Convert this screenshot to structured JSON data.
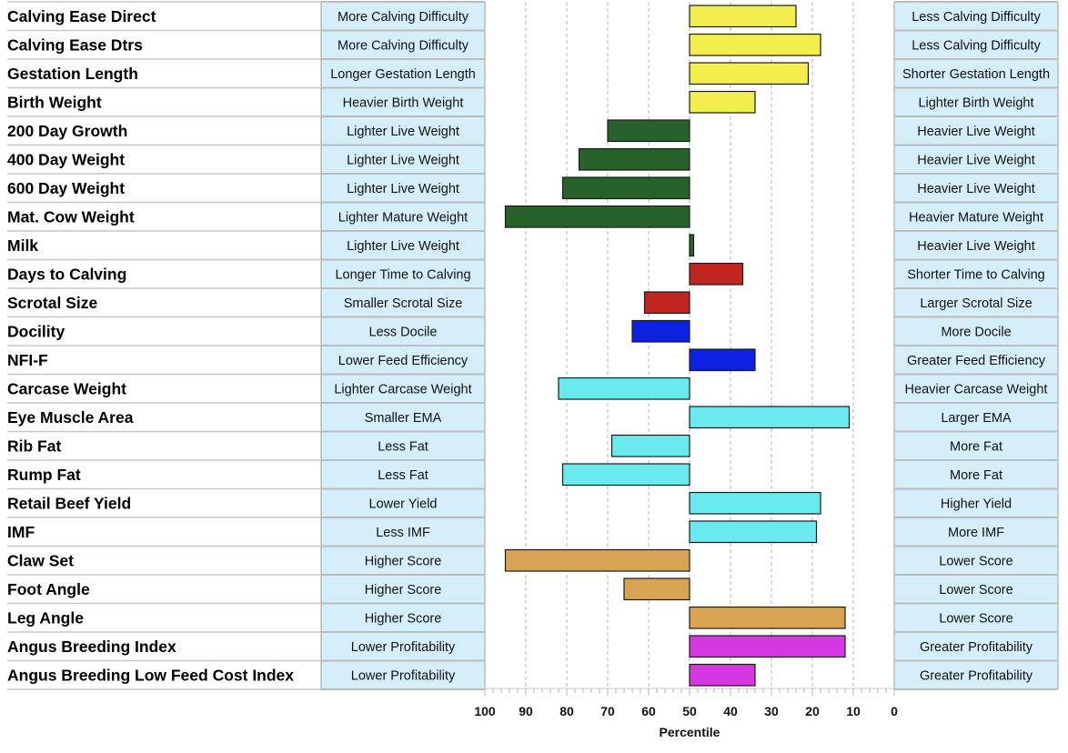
{
  "chart_data": {
    "type": "bar",
    "xlabel": "Percentile",
    "xlim": [
      100,
      0
    ],
    "xticks": [
      "100",
      "90",
      "80",
      "70",
      "60",
      "50",
      "40",
      "30",
      "20",
      "10",
      "0"
    ],
    "rows": [
      {
        "trait": "Calving Ease Direct",
        "left": "More Calving Difficulty",
        "right": "Less Calving Difficulty",
        "value": 24,
        "color": "#f2ee4d"
      },
      {
        "trait": "Calving Ease Dtrs",
        "left": "More Calving Difficulty",
        "right": "Less Calving Difficulty",
        "value": 18,
        "color": "#f2ee4d"
      },
      {
        "trait": "Gestation Length",
        "left": "Longer Gestation Length",
        "right": "Shorter Gestation Length",
        "value": 21,
        "color": "#f2ee4d"
      },
      {
        "trait": "Birth Weight",
        "left": "Heavier Birth Weight",
        "right": "Lighter Birth Weight",
        "value": 34,
        "color": "#f2ee4d"
      },
      {
        "trait": "200 Day Growth",
        "left": "Lighter Live Weight",
        "right": "Heavier Live Weight",
        "value": 70,
        "color": "#27622b"
      },
      {
        "trait": "400 Day Weight",
        "left": "Lighter Live Weight",
        "right": "Heavier Live Weight",
        "value": 77,
        "color": "#27622b"
      },
      {
        "trait": "600 Day Weight",
        "left": "Lighter Live Weight",
        "right": "Heavier Live Weight",
        "value": 81,
        "color": "#27622b"
      },
      {
        "trait": "Mat. Cow Weight",
        "left": "Lighter Mature Weight",
        "right": "Heavier Mature Weight",
        "value": 95,
        "color": "#27622b"
      },
      {
        "trait": "Milk",
        "left": "Lighter Live Weight",
        "right": "Heavier Live Weight",
        "value": 49,
        "color": "#27622b"
      },
      {
        "trait": "Days to Calving",
        "left": "Longer Time to Calving",
        "right": "Shorter Time to Calving",
        "value": 37,
        "color": "#c0251f"
      },
      {
        "trait": "Scrotal Size",
        "left": "Smaller Scrotal Size",
        "right": "Larger Scrotal Size",
        "value": 61,
        "color": "#c0251f"
      },
      {
        "trait": "Docility",
        "left": "Less Docile",
        "right": "More Docile",
        "value": 64,
        "color": "#0c22e0"
      },
      {
        "trait": "NFI-F",
        "left": "Lower Feed Efficiency",
        "right": "Greater Feed Efficiency",
        "value": 34,
        "color": "#0c22e0"
      },
      {
        "trait": "Carcase Weight",
        "left": "Lighter Carcase Weight",
        "right": "Heavier Carcase Weight",
        "value": 82,
        "color": "#68eaee"
      },
      {
        "trait": "Eye Muscle Area",
        "left": "Smaller EMA",
        "right": "Larger EMA",
        "value": 11,
        "color": "#68eaee"
      },
      {
        "trait": "Rib Fat",
        "left": "Less Fat",
        "right": "More Fat",
        "value": 69,
        "color": "#68eaee"
      },
      {
        "trait": "Rump Fat",
        "left": "Less Fat",
        "right": "More Fat",
        "value": 81,
        "color": "#68eaee"
      },
      {
        "trait": "Retail Beef Yield",
        "left": "Lower Yield",
        "right": "Higher Yield",
        "value": 18,
        "color": "#68eaee"
      },
      {
        "trait": "IMF",
        "left": "Less IMF",
        "right": "More IMF",
        "value": 19,
        "color": "#68eaee"
      },
      {
        "trait": "Claw Set",
        "left": "Higher Score",
        "right": "Lower Score",
        "value": 95,
        "color": "#d9a354"
      },
      {
        "trait": "Foot Angle",
        "left": "Higher Score",
        "right": "Lower Score",
        "value": 66,
        "color": "#d9a354"
      },
      {
        "trait": "Leg Angle",
        "left": "Higher Score",
        "right": "Lower Score",
        "value": 12,
        "color": "#d9a354"
      },
      {
        "trait": "Angus Breeding Index",
        "left": "Lower Profitability",
        "right": "Greater Profitability",
        "value": 12,
        "color": "#d637e0"
      },
      {
        "trait": "Angus Breeding Low Feed Cost Index",
        "left": "Lower Profitability",
        "right": "Greater Profitability",
        "value": 34,
        "color": "#d637e0"
      }
    ]
  }
}
